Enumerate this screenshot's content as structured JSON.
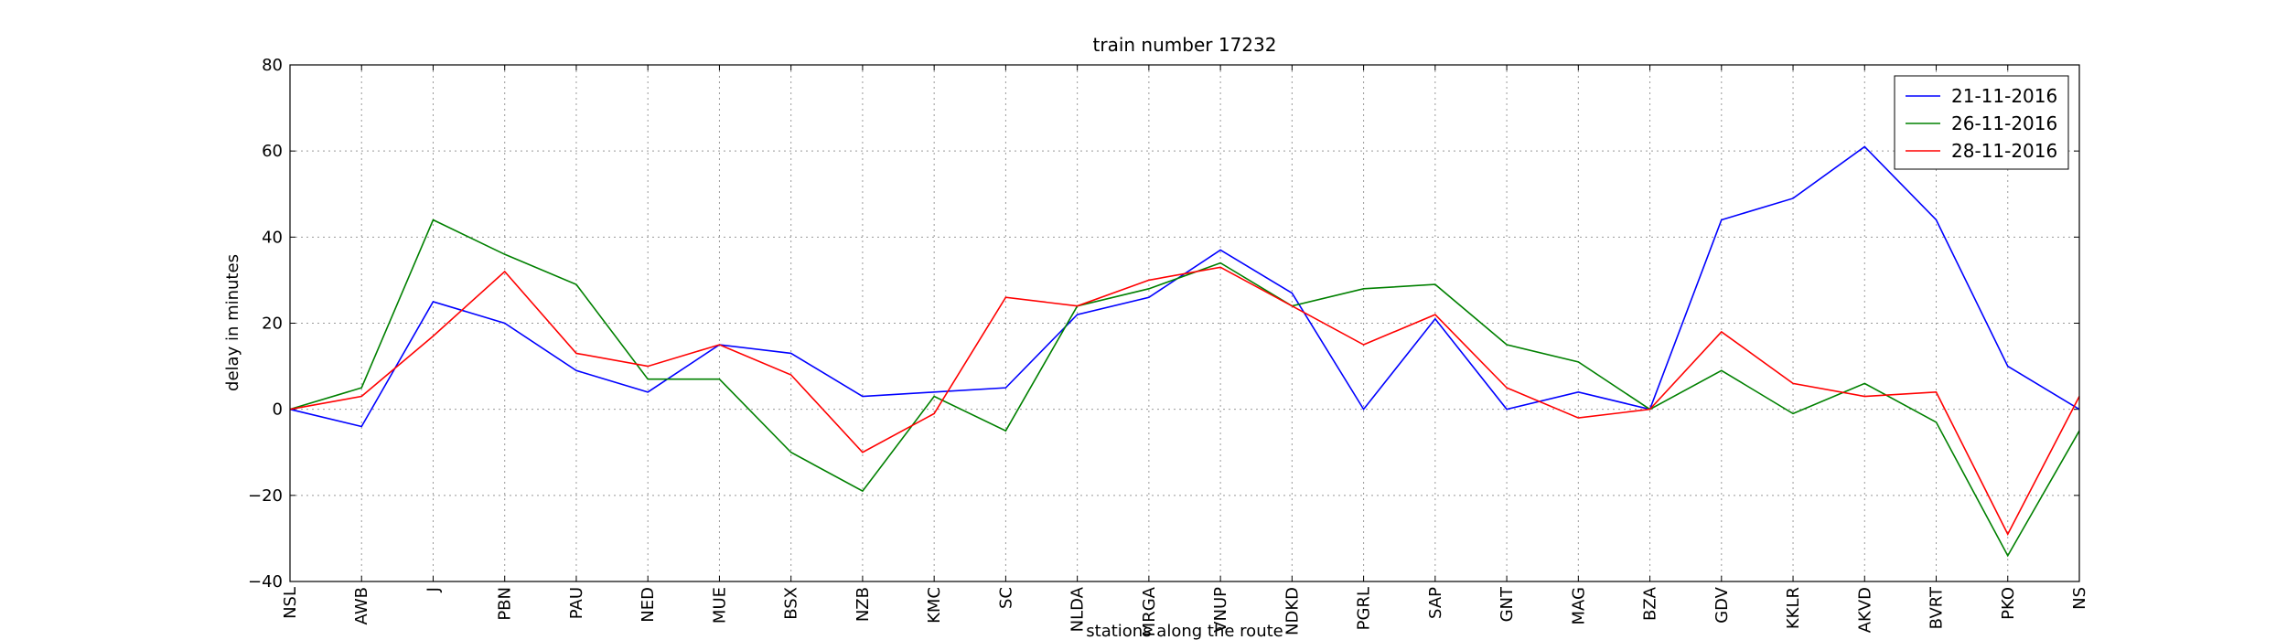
{
  "chart_data": {
    "type": "line",
    "title": "train number 17232",
    "x_label": "stations along the route",
    "y_label": "delay in minutes",
    "categories": [
      "NSL",
      "AWB",
      "J",
      "PBN",
      "PAU",
      "NED",
      "MUE",
      "BSX",
      "NZB",
      "KMC",
      "SC",
      "NLDA",
      "MRGA",
      "VNUP",
      "NDKD",
      "PGRL",
      "SAP",
      "GNT",
      "MAG",
      "BZA",
      "GDV",
      "KKLR",
      "AKVD",
      "BVRT",
      "PKO",
      "NS"
    ],
    "series": [
      {
        "name": "21-11-2016",
        "color": "#0000ff",
        "values": [
          0,
          -4,
          25,
          20,
          9,
          4,
          15,
          13,
          3,
          4,
          5,
          22,
          26,
          37,
          27,
          0,
          21,
          0,
          4,
          0,
          44,
          49,
          61,
          44,
          10,
          0
        ]
      },
      {
        "name": "26-11-2016",
        "color": "#008000",
        "values": [
          0,
          5,
          44,
          36,
          29,
          7,
          7,
          -10,
          -19,
          3,
          -5,
          24,
          28,
          34,
          24,
          28,
          29,
          15,
          11,
          0,
          9,
          -1,
          6,
          -3,
          -34,
          -5
        ]
      },
      {
        "name": "28-11-2016",
        "color": "#ff0000",
        "values": [
          0,
          3,
          17,
          32,
          13,
          10,
          15,
          8,
          -10,
          -1,
          26,
          24,
          30,
          33,
          24,
          15,
          22,
          5,
          -2,
          0,
          18,
          6,
          3,
          4,
          -29,
          3
        ]
      }
    ],
    "ylim": [
      -40,
      80
    ],
    "yticks": [
      {
        "value": -40,
        "label": "−40"
      },
      {
        "value": -20,
        "label": "−20"
      },
      0,
      20,
      40,
      60,
      80
    ],
    "grid": true,
    "legend": "upper right"
  }
}
